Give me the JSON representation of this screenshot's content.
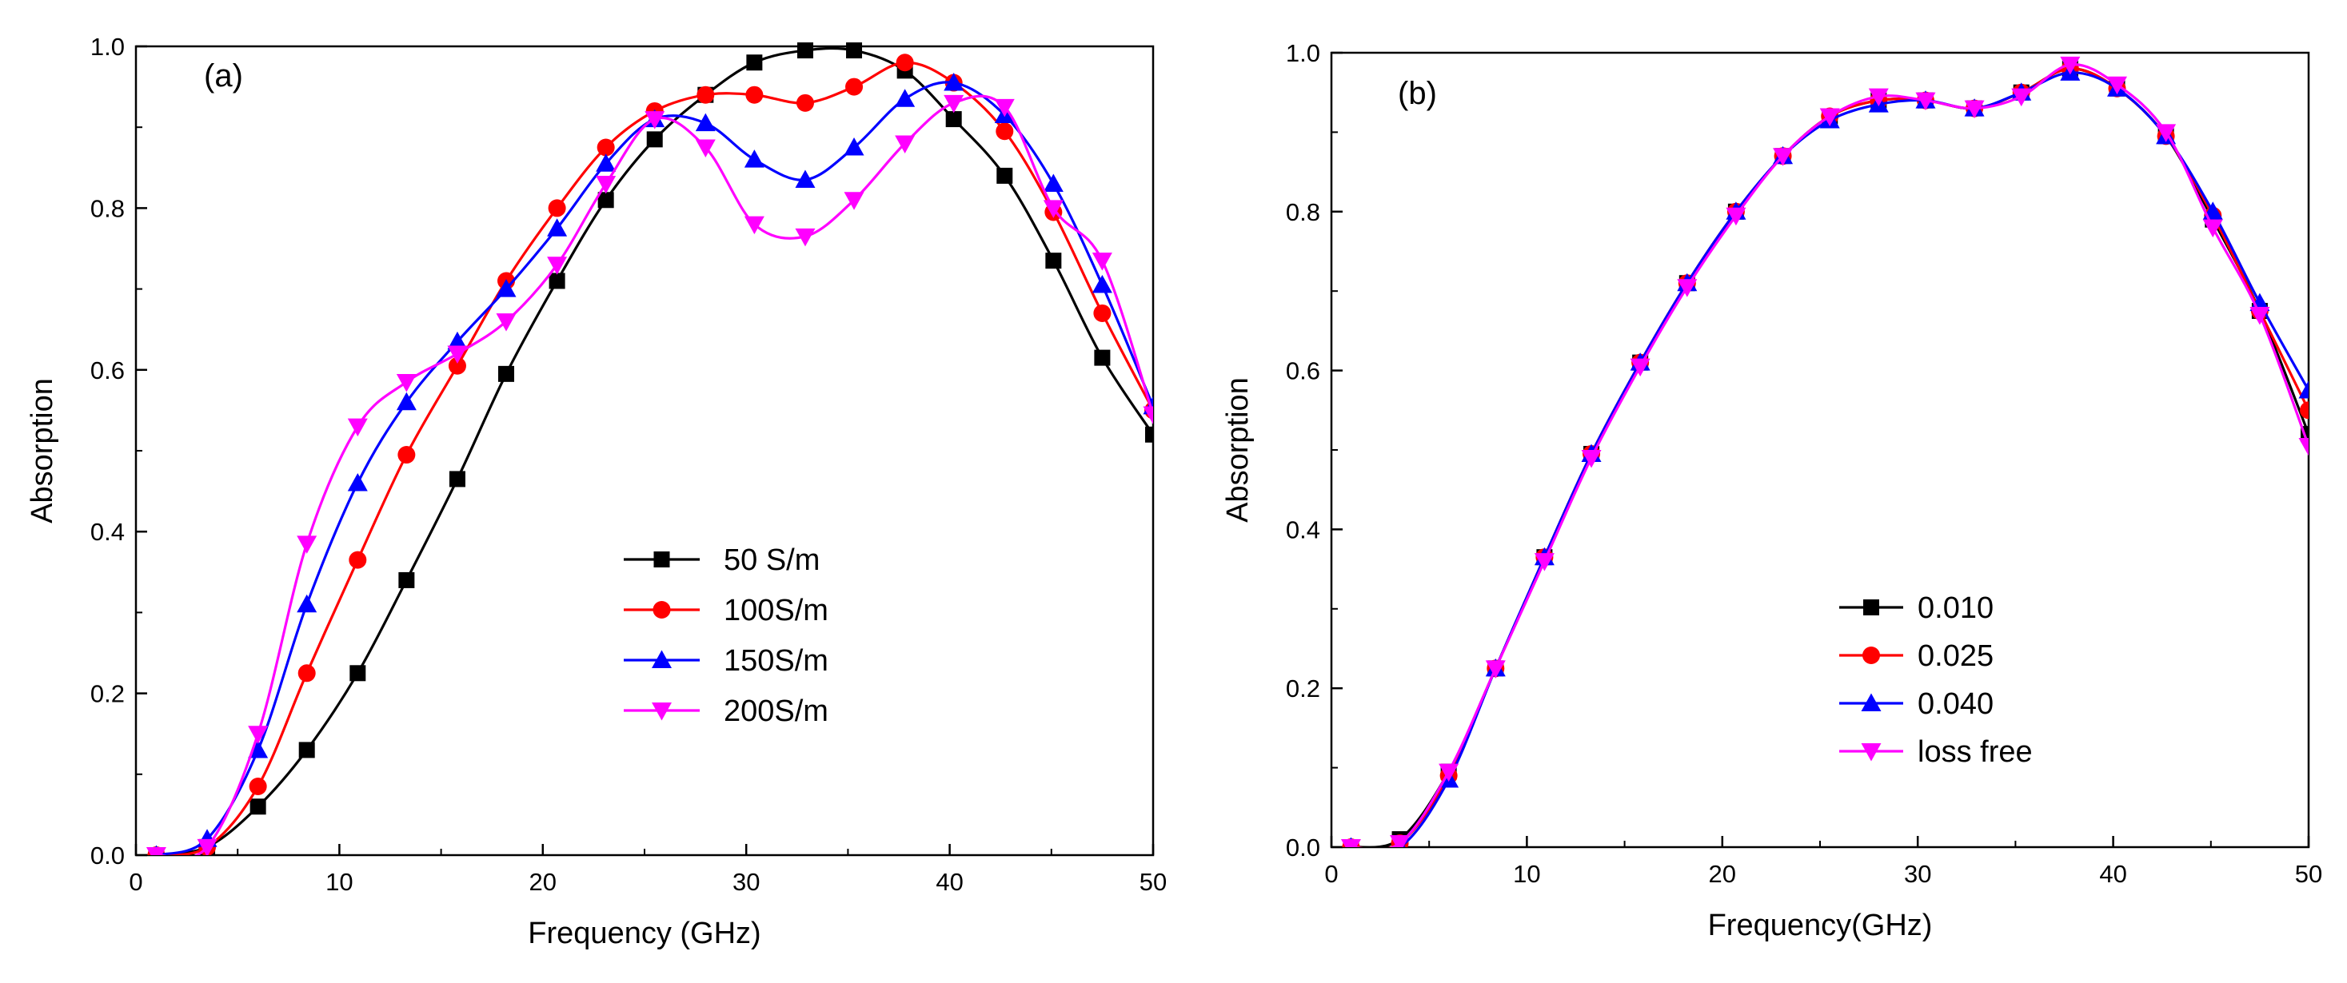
{
  "chart_data": [
    {
      "panel_label": "(a)",
      "type": "line",
      "xlabel": "Frequency (GHz)",
      "ylabel": "Absorption",
      "xlim": [
        0,
        50
      ],
      "ylim": [
        0,
        1.0
      ],
      "xticks": [
        "0",
        "10",
        "20",
        "30",
        "40",
        "50"
      ],
      "yticks": [
        "0.0",
        "0.2",
        "0.4",
        "0.6",
        "0.8",
        "1.0"
      ],
      "legend_position": "center-right",
      "grid": false,
      "series": [
        {
          "name": " 50 S/m",
          "color": "#000000",
          "marker": "square",
          "x": [
            1,
            3.5,
            6,
            8.4,
            10.9,
            13.3,
            15.8,
            18.2,
            20.7,
            23.1,
            25.5,
            28,
            30.4,
            32.9,
            35.3,
            37.8,
            40.2,
            42.7,
            45.1,
            47.5,
            50
          ],
          "y": [
            0.0,
            0.01,
            0.06,
            0.13,
            0.225,
            0.34,
            0.465,
            0.595,
            0.71,
            0.81,
            0.885,
            0.94,
            0.98,
            0.995,
            0.995,
            0.97,
            0.91,
            0.84,
            0.735,
            0.615,
            0.52
          ]
        },
        {
          "name": "100S/m",
          "color": "#ff0000",
          "marker": "circle",
          "x": [
            1,
            3.5,
            6,
            8.4,
            10.9,
            13.3,
            15.8,
            18.2,
            20.7,
            23.1,
            25.5,
            28,
            30.4,
            32.9,
            35.3,
            37.8,
            40.2,
            42.7,
            45.1,
            47.5,
            50
          ],
          "y": [
            0.0,
            0.01,
            0.085,
            0.225,
            0.365,
            0.495,
            0.605,
            0.71,
            0.8,
            0.875,
            0.92,
            0.94,
            0.94,
            0.93,
            0.95,
            0.98,
            0.955,
            0.895,
            0.795,
            0.67,
            0.55
          ]
        },
        {
          "name": "150S/m",
          "color": "#0000ff",
          "marker": "triangle-up",
          "x": [
            1,
            3.5,
            6,
            8.4,
            10.9,
            13.3,
            15.8,
            18.2,
            20.7,
            23.1,
            25.5,
            28,
            30.4,
            32.9,
            35.3,
            37.8,
            40.2,
            42.7,
            45.1,
            47.5,
            50
          ],
          "y": [
            0.0,
            0.02,
            0.13,
            0.31,
            0.46,
            0.56,
            0.635,
            0.7,
            0.775,
            0.855,
            0.91,
            0.905,
            0.86,
            0.835,
            0.875,
            0.935,
            0.955,
            0.915,
            0.83,
            0.705,
            0.555
          ]
        },
        {
          "name": "200S/m",
          "color": "#ff00ff",
          "marker": "triangle-down",
          "x": [
            1,
            3.5,
            6,
            8.4,
            10.9,
            13.3,
            15.8,
            18.2,
            20.7,
            23.1,
            25.5,
            28,
            30.4,
            32.9,
            35.3,
            37.8,
            40.2,
            42.7,
            45.1,
            47.5,
            50
          ],
          "y": [
            0.0,
            0.01,
            0.15,
            0.385,
            0.53,
            0.585,
            0.62,
            0.66,
            0.73,
            0.83,
            0.91,
            0.875,
            0.78,
            0.765,
            0.81,
            0.88,
            0.93,
            0.925,
            0.8,
            0.735,
            0.545
          ]
        }
      ]
    },
    {
      "panel_label": "(b)",
      "type": "line",
      "xlabel": "Frequency(GHz)",
      "ylabel": "Absorption",
      "xlim": [
        0,
        50
      ],
      "ylim": [
        0,
        1.0
      ],
      "xticks": [
        "0",
        "10",
        "20",
        "30",
        "40",
        "50"
      ],
      "yticks": [
        "0.0",
        "0.2",
        "0.4",
        "0.6",
        "0.8",
        "1.0"
      ],
      "legend_position": "center-right",
      "grid": false,
      "series": [
        {
          "name": "0.010",
          "color": "#000000",
          "marker": "square",
          "x": [
            1,
            3.5,
            6,
            8.4,
            10.9,
            13.3,
            15.8,
            18.2,
            20.7,
            23.1,
            25.5,
            28,
            30.4,
            32.9,
            35.3,
            37.8,
            40.2,
            42.7,
            45.1,
            47.5,
            50
          ],
          "y": [
            0.0,
            0.01,
            0.095,
            0.225,
            0.365,
            0.495,
            0.61,
            0.71,
            0.8,
            0.87,
            0.92,
            0.94,
            0.94,
            0.93,
            0.95,
            0.98,
            0.955,
            0.895,
            0.79,
            0.675,
            0.52
          ]
        },
        {
          "name": "0.025",
          "color": "#ff0000",
          "marker": "circle",
          "x": [
            1,
            3.5,
            6,
            8.4,
            10.9,
            13.3,
            15.8,
            18.2,
            20.7,
            23.1,
            25.5,
            28,
            30.4,
            32.9,
            35.3,
            37.8,
            40.2,
            42.7,
            45.1,
            47.5,
            50
          ],
          "y": [
            0.0,
            0.005,
            0.09,
            0.225,
            0.365,
            0.495,
            0.61,
            0.71,
            0.8,
            0.87,
            0.92,
            0.94,
            0.94,
            0.93,
            0.95,
            0.98,
            0.955,
            0.895,
            0.795,
            0.675,
            0.55
          ]
        },
        {
          "name": "0.040",
          "color": "#0000ff",
          "marker": "triangle-up",
          "x": [
            1,
            3.5,
            6,
            8.4,
            10.9,
            13.3,
            15.8,
            18.2,
            20.7,
            23.1,
            25.5,
            28,
            30.4,
            32.9,
            35.3,
            37.8,
            40.2,
            42.7,
            45.1,
            47.5,
            50
          ],
          "y": [
            0.0,
            0.0,
            0.085,
            0.225,
            0.365,
            0.495,
            0.61,
            0.71,
            0.8,
            0.87,
            0.915,
            0.935,
            0.94,
            0.93,
            0.95,
            0.975,
            0.955,
            0.895,
            0.8,
            0.685,
            0.575
          ]
        },
        {
          "name": "loss free",
          "color": "#ff00ff",
          "marker": "triangle-down",
          "x": [
            1,
            3.5,
            6,
            8.4,
            10.9,
            13.3,
            15.8,
            18.2,
            20.7,
            23.1,
            25.5,
            28,
            30.4,
            32.9,
            35.3,
            37.8,
            40.2,
            42.7,
            45.1,
            47.5,
            50
          ],
          "y": [
            0.0,
            0.005,
            0.095,
            0.225,
            0.36,
            0.49,
            0.605,
            0.705,
            0.795,
            0.87,
            0.92,
            0.945,
            0.94,
            0.93,
            0.945,
            0.985,
            0.96,
            0.9,
            0.78,
            0.67,
            0.505
          ]
        }
      ]
    }
  ]
}
